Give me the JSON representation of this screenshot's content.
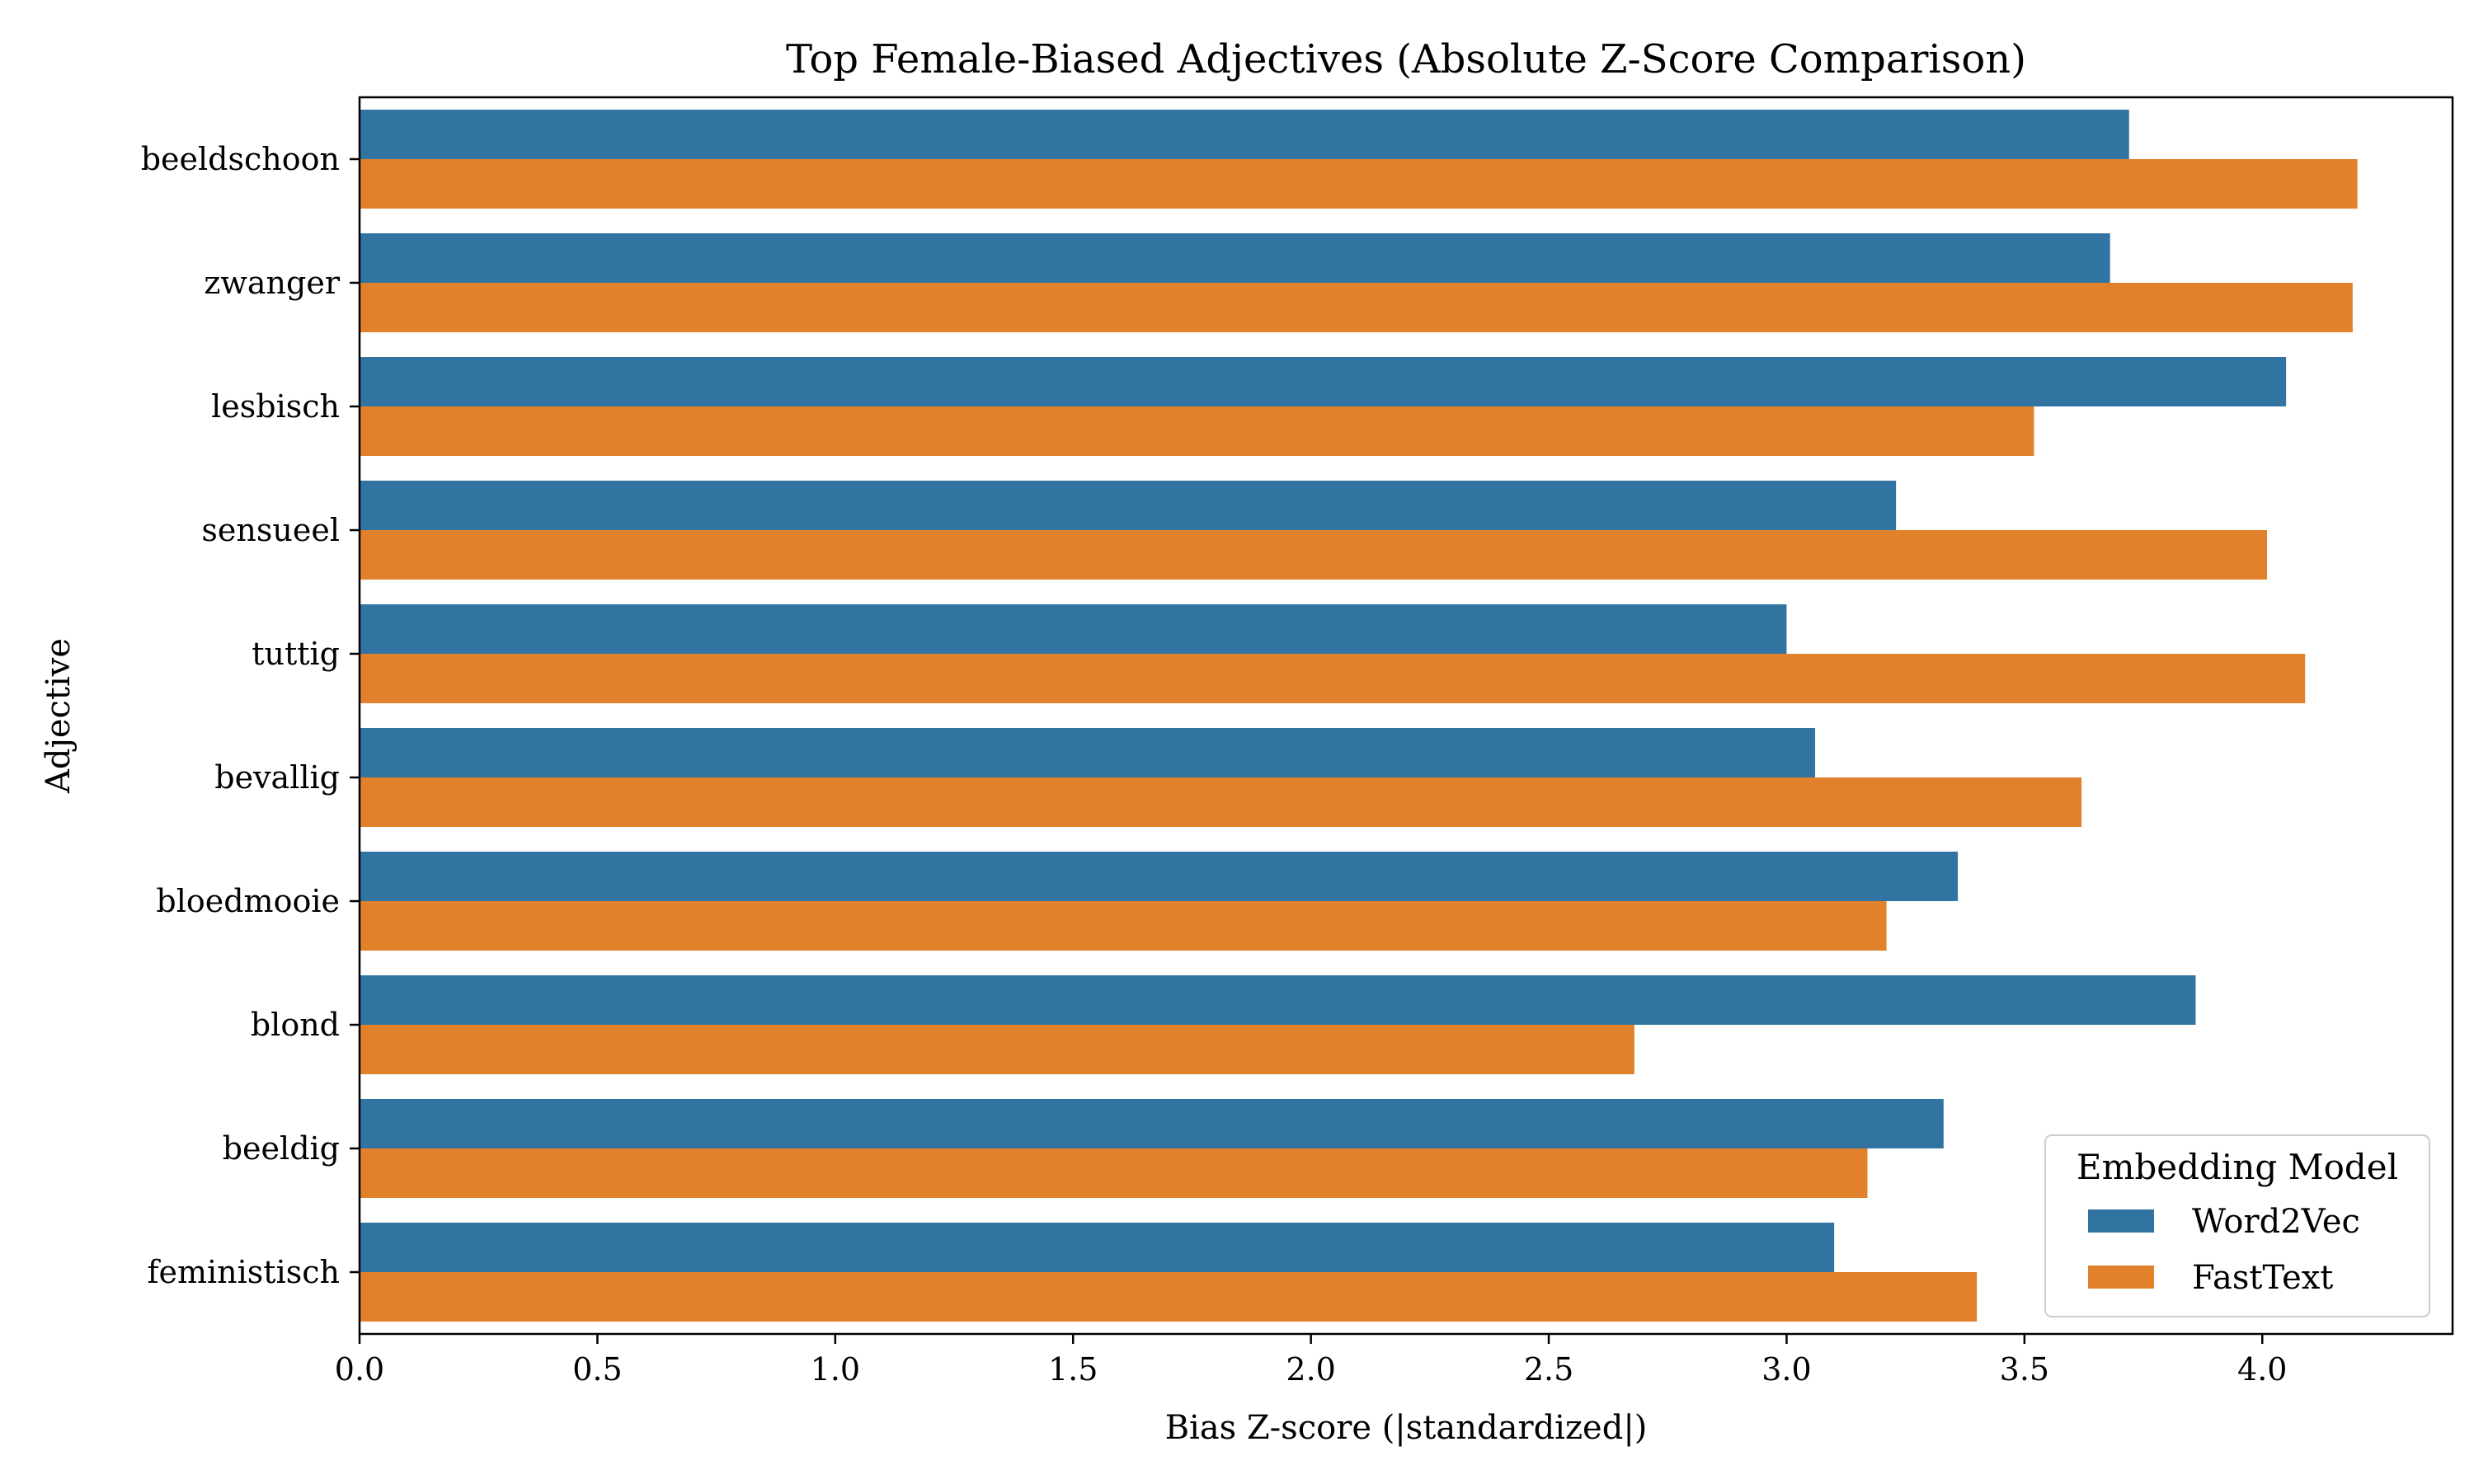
{
  "chart_data": {
    "type": "bar",
    "orientation": "horizontal",
    "title": "Top Female-Biased Adjectives (Absolute Z-Score Comparison)",
    "xlabel": "Bias Z-score (|standardized|)",
    "ylabel": "Adjective",
    "categories": [
      "beeldschoon",
      "zwanger",
      "lesbisch",
      "sensueel",
      "tuttig",
      "bevallig",
      "bloedmooie",
      "blond",
      "beeldig",
      "feministisch"
    ],
    "series": [
      {
        "name": "Word2Vec",
        "color": "#3274a1",
        "values": [
          3.72,
          3.68,
          4.05,
          3.23,
          3.0,
          3.06,
          3.36,
          3.86,
          3.33,
          3.1
        ]
      },
      {
        "name": "FastText",
        "color": "#e1812c",
        "values": [
          4.2,
          4.19,
          3.52,
          4.01,
          4.09,
          3.62,
          3.21,
          2.68,
          3.17,
          3.4
        ]
      }
    ],
    "xlim": [
      0,
      4.4
    ],
    "xticks": [
      0.0,
      0.5,
      1.0,
      1.5,
      2.0,
      2.5,
      3.0,
      3.5,
      4.0
    ],
    "xtick_labels": [
      "0.0",
      "0.5",
      "1.0",
      "1.5",
      "2.0",
      "2.5",
      "3.0",
      "3.5",
      "4.0"
    ],
    "grid": false,
    "legend": {
      "title": "Embedding Model",
      "position": "lower-right"
    }
  }
}
